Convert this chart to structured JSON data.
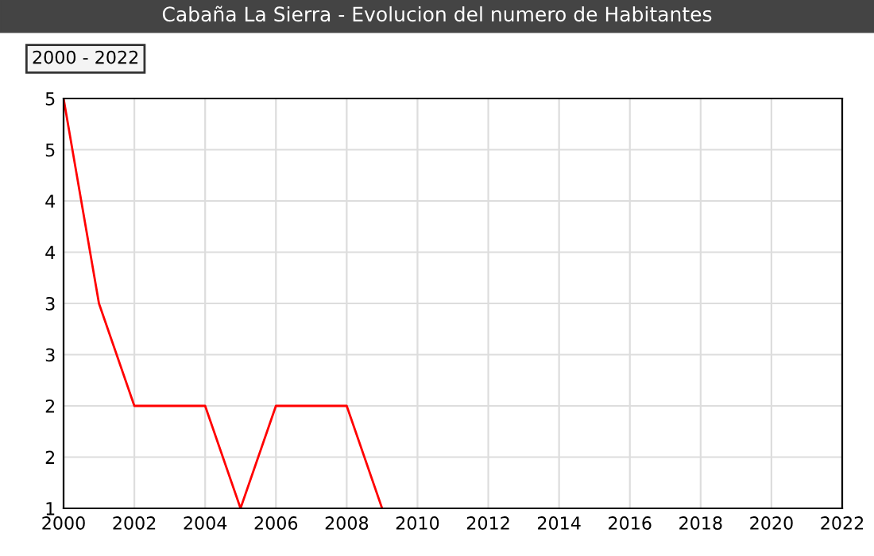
{
  "chart_data": {
    "type": "line",
    "title": "Cabaña La Sierra - Evolucion del numero de Habitantes",
    "annotations": [
      "2000 - 2022"
    ],
    "x": [
      2000,
      2001,
      2002,
      2003,
      2004,
      2005,
      2006,
      2007,
      2008,
      2009
    ],
    "series": [
      {
        "color": "#ff0000",
        "values": [
          5,
          3,
          2,
          2,
          2,
          1,
          2,
          2,
          2,
          1
        ]
      }
    ],
    "xlim": [
      2000,
      2022
    ],
    "xticks": [
      2000,
      2002,
      2004,
      2006,
      2008,
      2010,
      2012,
      2014,
      2016,
      2018,
      2020,
      2022
    ],
    "ylim": [
      1,
      5
    ],
    "yticks": [
      1,
      {
        "value": 1.5,
        "label": "2"
      },
      2,
      {
        "value": 2.5,
        "label": "3"
      },
      3,
      {
        "value": 3.5,
        "label": "4"
      },
      4,
      {
        "value": 4.5,
        "label": "5"
      },
      5
    ],
    "grid": true,
    "legend": false,
    "marker": "none",
    "line_style": "solid"
  }
}
